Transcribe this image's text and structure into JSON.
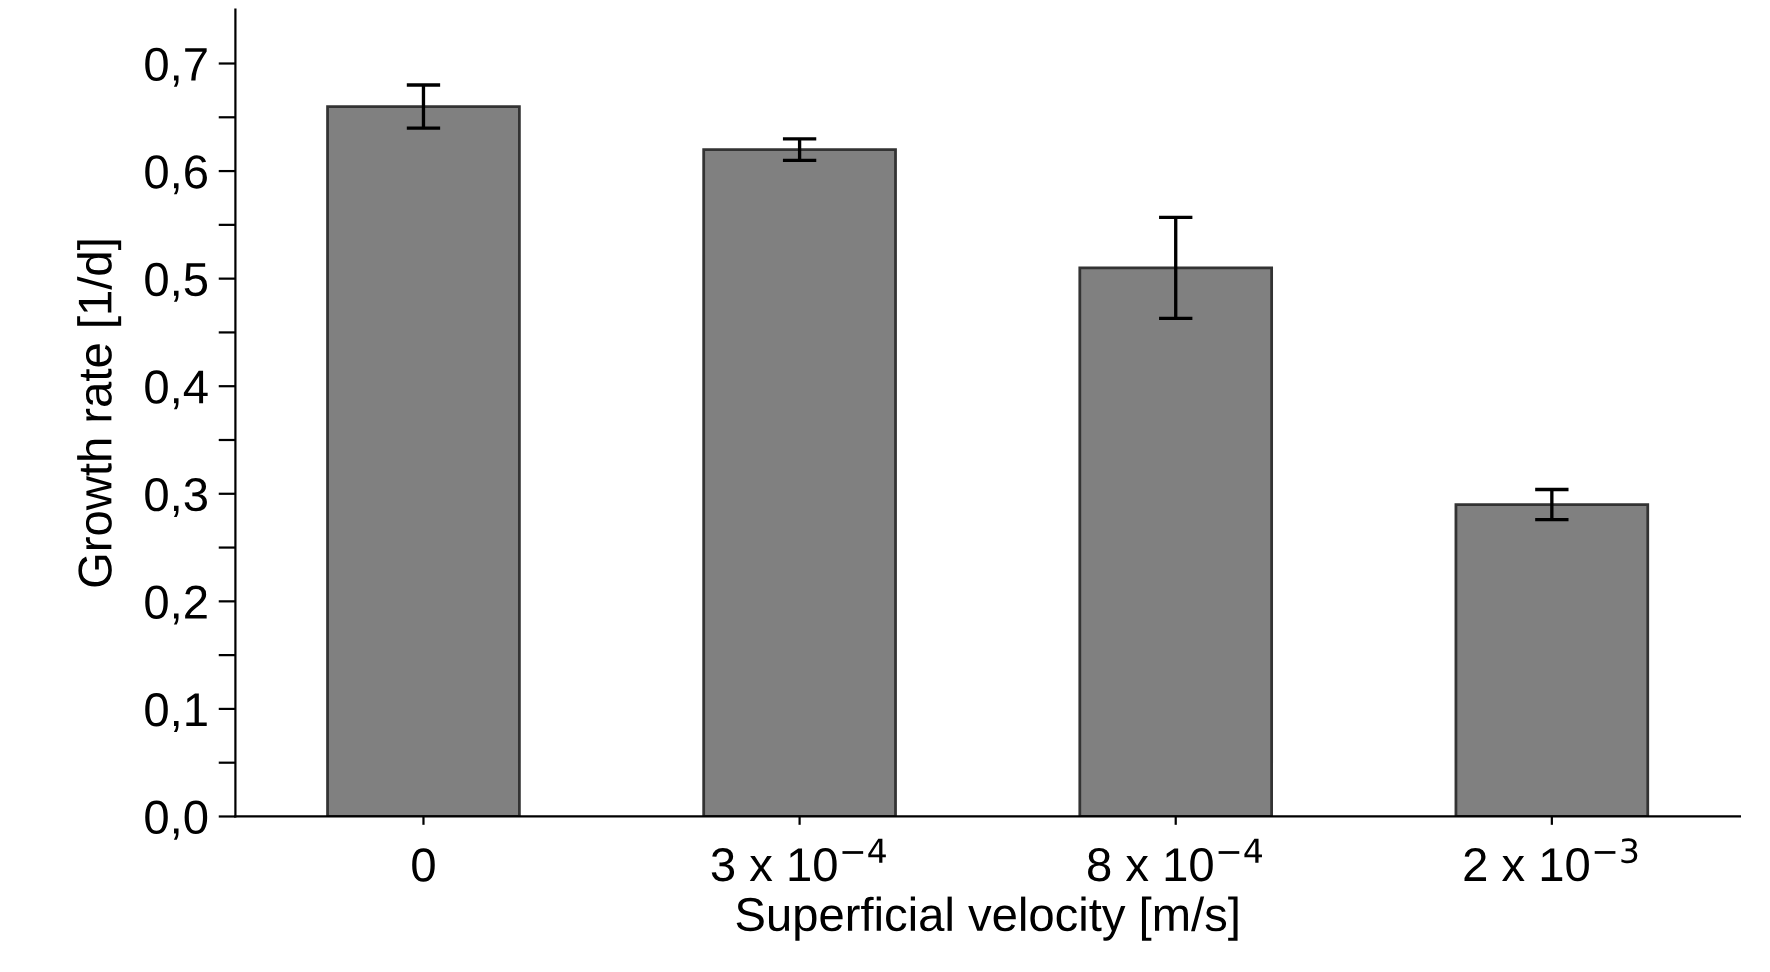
{
  "chart_data": {
    "type": "bar",
    "xlabel": "Superficial velocity [m/s]",
    "ylabel": "Growth rate [1/d]",
    "categories": [
      "0",
      "3 x 10$^{−4}$",
      "8 x 10$^{−4}$",
      "2 x 10$^{−3}$"
    ],
    "values": [
      0.66,
      0.62,
      0.51,
      0.29
    ],
    "errors": [
      0.02,
      0.01,
      0.047,
      0.014
    ],
    "color": "#808080",
    "ylim": [
      0,
      0.75
    ],
    "yticks": [
      {
        "value": 0,
        "label": "0,0"
      },
      {
        "value": 0.05,
        "label": null
      },
      {
        "value": 0.1,
        "label": "0,1"
      },
      {
        "value": 0.15,
        "label": null
      },
      {
        "value": 0.2,
        "label": "0,2"
      },
      {
        "value": 0.25,
        "label": null
      },
      {
        "value": 0.3,
        "label": "0,3"
      },
      {
        "value": 0.35,
        "label": null
      },
      {
        "value": 0.4,
        "label": "0,4"
      },
      {
        "value": 0.45,
        "label": null
      },
      {
        "value": 0.5,
        "label": "0,5"
      },
      {
        "value": 0.55,
        "label": null
      },
      {
        "value": 0.6,
        "label": "0,6"
      },
      {
        "value": 0.65,
        "label": null
      },
      {
        "value": 0.7,
        "label": "0,7"
      }
    ],
    "grid": false,
    "legend": false
  }
}
